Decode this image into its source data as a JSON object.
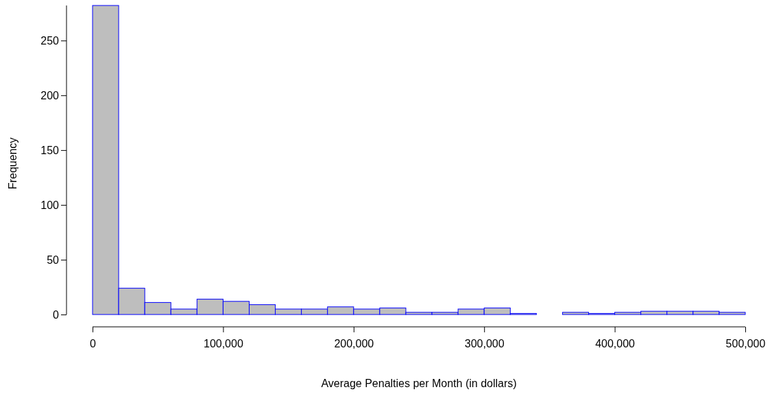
{
  "chart_data": {
    "type": "histogram",
    "xlabel": "Average Penalties per Month (in dollars)",
    "ylabel": "Frequency",
    "bins": [
      0,
      20000,
      40000,
      60000,
      80000,
      100000,
      120000,
      140000,
      160000,
      180000,
      200000,
      220000,
      240000,
      260000,
      280000,
      300000,
      320000,
      340000,
      360000,
      380000,
      400000,
      420000,
      440000,
      460000,
      480000,
      500000
    ],
    "values": [
      282,
      24,
      11,
      5,
      14,
      12,
      9,
      5,
      5,
      7,
      5,
      6,
      2,
      2,
      5,
      6,
      1,
      0,
      2,
      1,
      2,
      3,
      3,
      3,
      2
    ],
    "color": "#bebebe",
    "xlim": [
      0,
      500000
    ],
    "xticks": [
      {
        "value": 0,
        "label": "0"
      },
      {
        "value": 100000,
        "label": "100,000"
      },
      {
        "value": 200000,
        "label": "200,000"
      },
      {
        "value": 300000,
        "label": "300,000"
      },
      {
        "value": 400000,
        "label": "400,000"
      },
      {
        "value": 500000,
        "label": "500,000"
      }
    ],
    "ylim": [
      0,
      282
    ],
    "yticks": [
      0,
      50,
      100,
      150,
      200,
      250
    ],
    "grid": false
  }
}
